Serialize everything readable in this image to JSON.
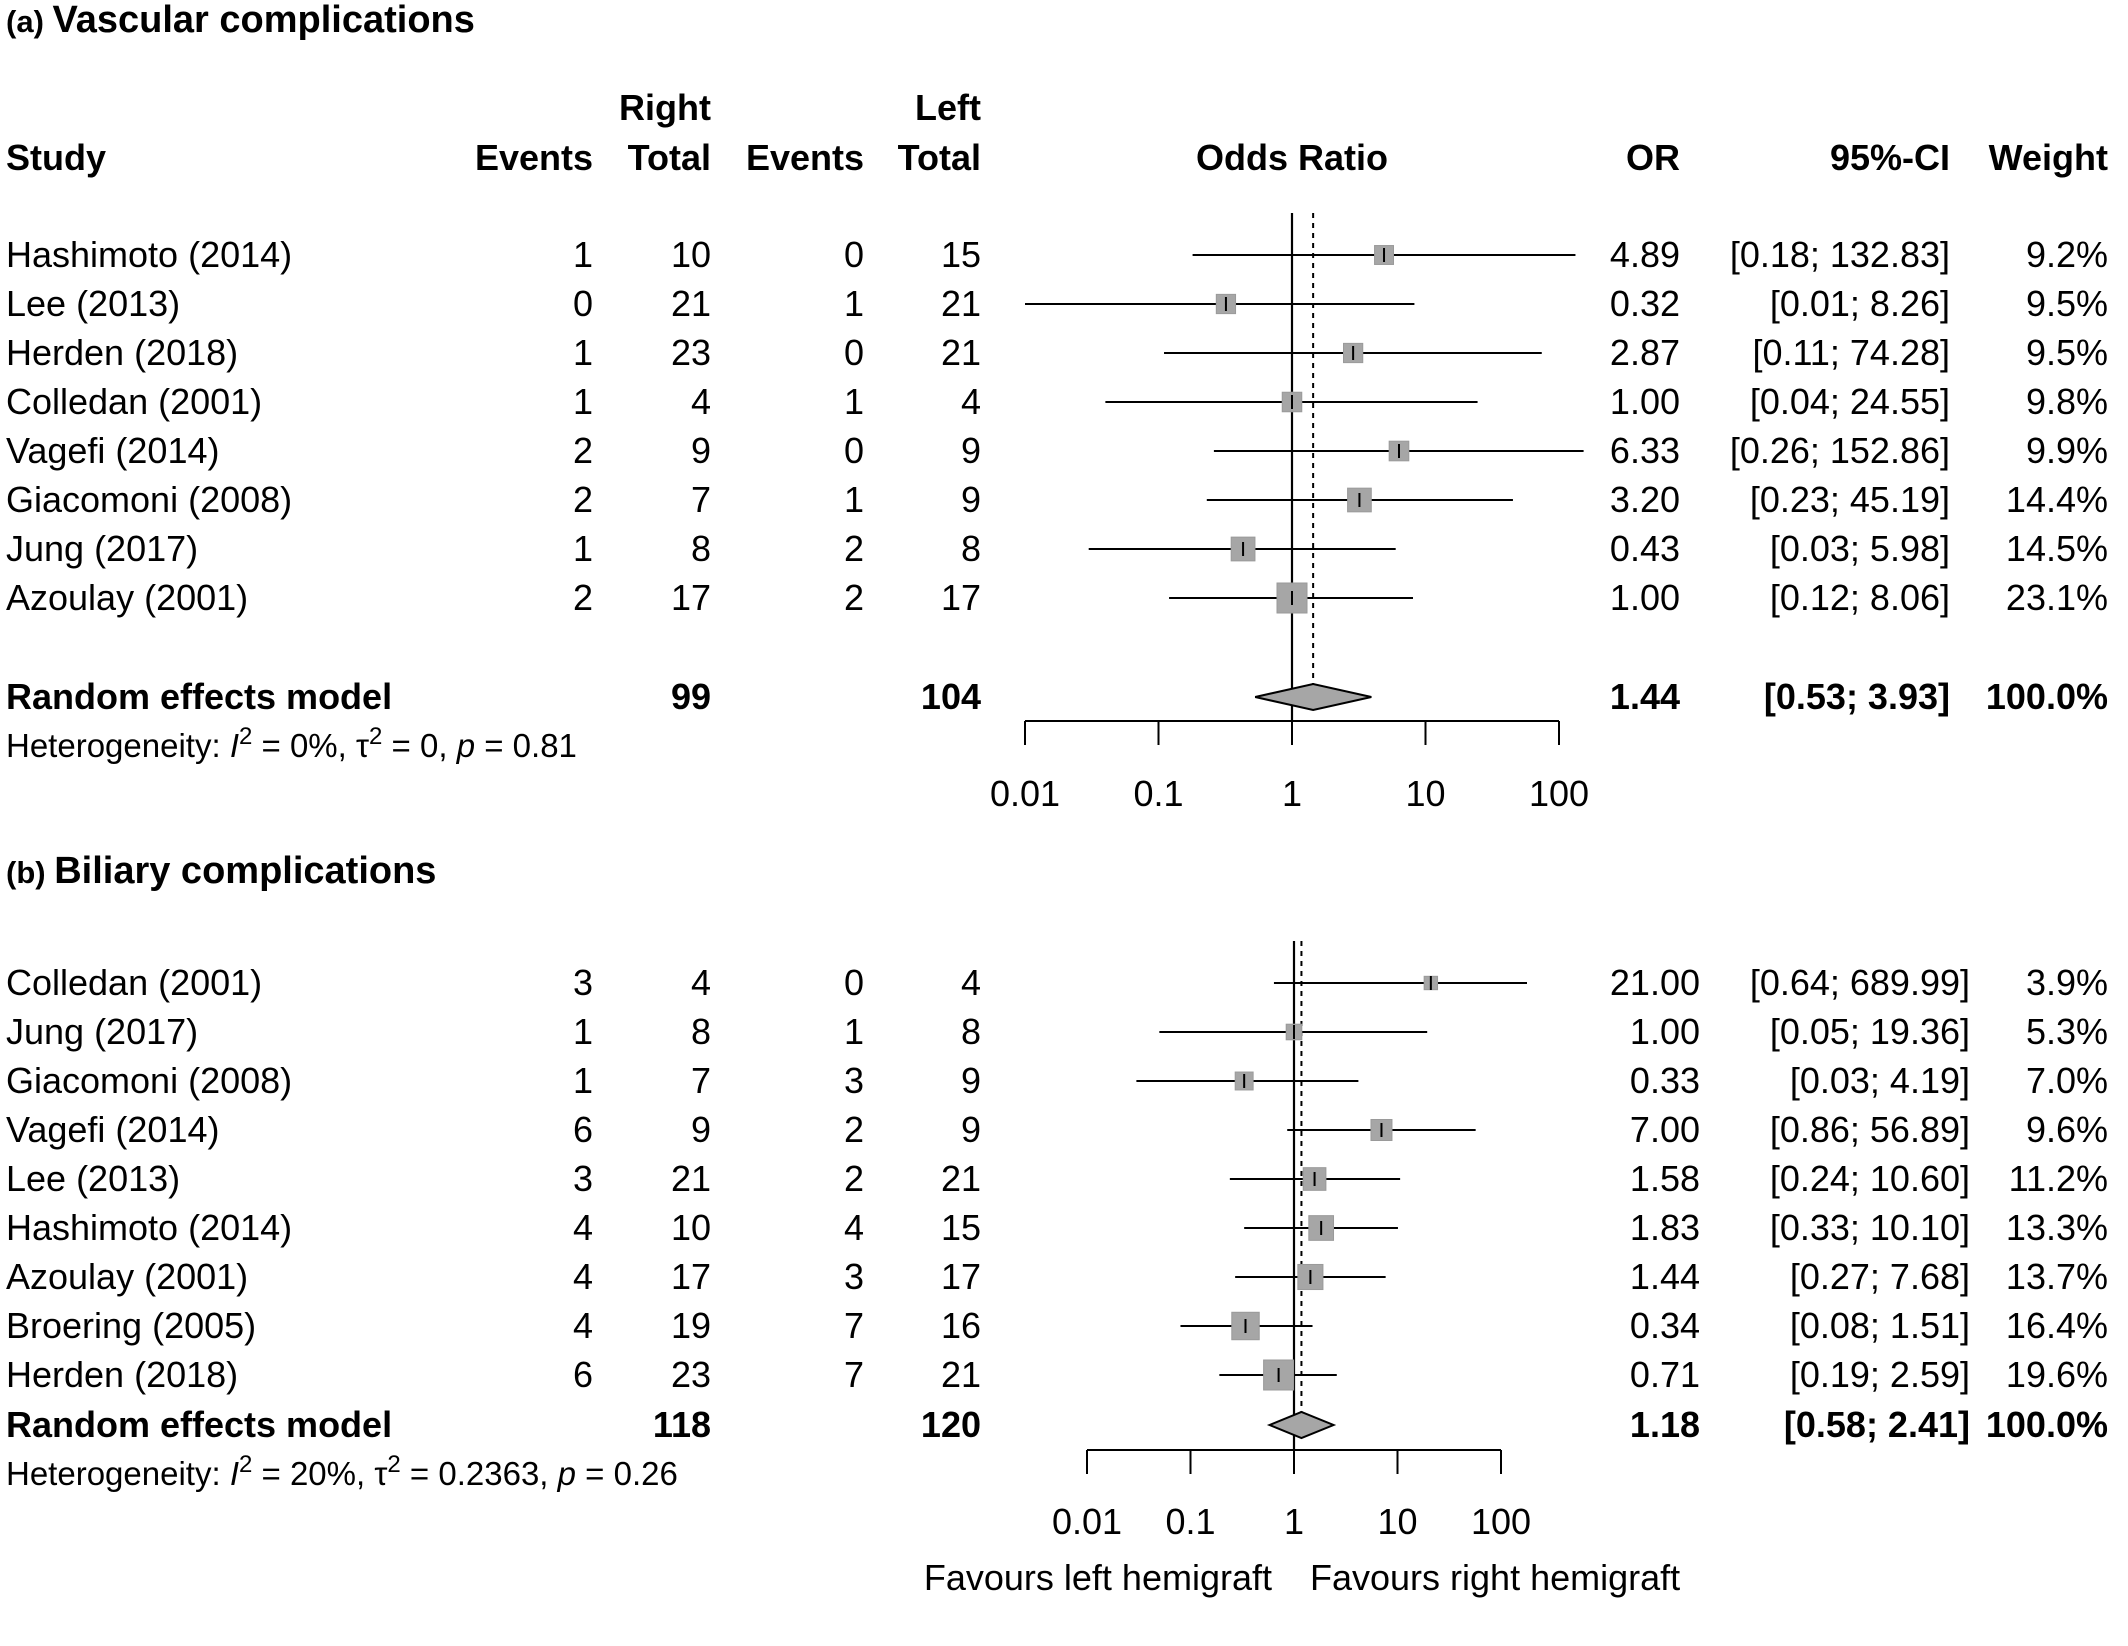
{
  "chart_data": [
    {
      "type": "forest",
      "panel_label": "(a)",
      "title": "Vascular complications",
      "columns": {
        "study": "Study",
        "right_group": "Right",
        "left_group": "Left",
        "events": "Events",
        "total": "Total",
        "plot": "Odds Ratio",
        "or": "OR",
        "ci": "95%-CI",
        "weight": "Weight"
      },
      "studies": [
        {
          "study": "Hashimoto (2014)",
          "right_events": 1,
          "right_total": 10,
          "left_events": 0,
          "left_total": 15,
          "or": 4.89,
          "ci_low": 0.18,
          "ci_high": 132.83,
          "weight": 9.2,
          "or_text": "4.89",
          "ci_text": "[0.18; 132.83]",
          "weight_text": "9.2%"
        },
        {
          "study": "Lee (2013)",
          "right_events": 0,
          "right_total": 21,
          "left_events": 1,
          "left_total": 21,
          "or": 0.32,
          "ci_low": 0.01,
          "ci_high": 8.26,
          "weight": 9.5,
          "or_text": "0.32",
          "ci_text": "[0.01;   8.26]",
          "weight_text": "9.5%"
        },
        {
          "study": "Herden (2018)",
          "right_events": 1,
          "right_total": 23,
          "left_events": 0,
          "left_total": 21,
          "or": 2.87,
          "ci_low": 0.11,
          "ci_high": 74.28,
          "weight": 9.5,
          "or_text": "2.87",
          "ci_text": "[0.11;  74.28]",
          "weight_text": "9.5%"
        },
        {
          "study": "Colledan (2001)",
          "right_events": 1,
          "right_total": 4,
          "left_events": 1,
          "left_total": 4,
          "or": 1.0,
          "ci_low": 0.04,
          "ci_high": 24.55,
          "weight": 9.8,
          "or_text": "1.00",
          "ci_text": "[0.04;  24.55]",
          "weight_text": "9.8%"
        },
        {
          "study": "Vagefi (2014)",
          "right_events": 2,
          "right_total": 9,
          "left_events": 0,
          "left_total": 9,
          "or": 6.33,
          "ci_low": 0.26,
          "ci_high": 152.86,
          "weight": 9.9,
          "or_text": "6.33",
          "ci_text": "[0.26; 152.86]",
          "weight_text": "9.9%"
        },
        {
          "study": "Giacomoni (2008)",
          "right_events": 2,
          "right_total": 7,
          "left_events": 1,
          "left_total": 9,
          "or": 3.2,
          "ci_low": 0.23,
          "ci_high": 45.19,
          "weight": 14.4,
          "or_text": "3.20",
          "ci_text": "[0.23;  45.19]",
          "weight_text": "14.4%"
        },
        {
          "study": "Jung (2017)",
          "right_events": 1,
          "right_total": 8,
          "left_events": 2,
          "left_total": 8,
          "or": 0.43,
          "ci_low": 0.03,
          "ci_high": 5.98,
          "weight": 14.5,
          "or_text": "0.43",
          "ci_text": "[0.03;   5.98]",
          "weight_text": "14.5%"
        },
        {
          "study": "Azoulay (2001)",
          "right_events": 2,
          "right_total": 17,
          "left_events": 2,
          "left_total": 17,
          "or": 1.0,
          "ci_low": 0.12,
          "ci_high": 8.06,
          "weight": 23.1,
          "or_text": "1.00",
          "ci_text": "[0.12;   8.06]",
          "weight_text": "23.1%"
        }
      ],
      "summary": {
        "label": "Random effects model",
        "right_total": 99,
        "left_total": 104,
        "or": 1.44,
        "ci_low": 0.53,
        "ci_high": 3.93,
        "or_text": "1.44",
        "ci_text": "[0.53;   3.93]",
        "weight_text": "100.0%"
      },
      "heterogeneity": {
        "prefix": "Heterogeneity: ",
        "i2_symbol": "I",
        "sup": "2",
        "i2_value": " = 0%, ",
        "tau_symbol": "τ",
        "tau_value": " = 0, ",
        "p_symbol": "p",
        "p_value": " = 0.81"
      },
      "x_axis": {
        "scale": "log",
        "ticks": [
          0.01,
          0.1,
          1,
          10,
          100
        ],
        "tick_labels": [
          "0.01",
          "0.1",
          "1",
          "10",
          "100"
        ],
        "xlim": [
          0.01,
          100
        ]
      },
      "reference_line": 1
    },
    {
      "type": "forest",
      "panel_label": "(b)",
      "title": "Biliary complications",
      "studies": [
        {
          "study": "Colledan (2001)",
          "right_events": 3,
          "right_total": 4,
          "left_events": 0,
          "left_total": 4,
          "or": 21.0,
          "ci_low": 0.64,
          "ci_high": 689.99,
          "weight": 3.9,
          "or_text": "21.00",
          "ci_text": "[0.64; 689.99]",
          "weight_text": "3.9%"
        },
        {
          "study": "Jung  (2017)",
          "right_events": 1,
          "right_total": 8,
          "left_events": 1,
          "left_total": 8,
          "or": 1.0,
          "ci_low": 0.05,
          "ci_high": 19.36,
          "weight": 5.3,
          "or_text": "1.00",
          "ci_text": "[0.05;  19.36]",
          "weight_text": "5.3%"
        },
        {
          "study": "Giacomoni  (2008)",
          "right_events": 1,
          "right_total": 7,
          "left_events": 3,
          "left_total": 9,
          "or": 0.33,
          "ci_low": 0.03,
          "ci_high": 4.19,
          "weight": 7.0,
          "or_text": "0.33",
          "ci_text": "[0.03;   4.19]",
          "weight_text": "7.0%"
        },
        {
          "study": "Vagefi  (2014)",
          "right_events": 6,
          "right_total": 9,
          "left_events": 2,
          "left_total": 9,
          "or": 7.0,
          "ci_low": 0.86,
          "ci_high": 56.89,
          "weight": 9.6,
          "or_text": "7.00",
          "ci_text": "[0.86;  56.89]",
          "weight_text": "9.6%"
        },
        {
          "study": "Lee  (2013)",
          "right_events": 3,
          "right_total": 21,
          "left_events": 2,
          "left_total": 21,
          "or": 1.58,
          "ci_low": 0.24,
          "ci_high": 10.6,
          "weight": 11.2,
          "or_text": "1.58",
          "ci_text": "[0.24;  10.60]",
          "weight_text": "11.2%"
        },
        {
          "study": "Hashimoto  (2014)",
          "right_events": 4,
          "right_total": 10,
          "left_events": 4,
          "left_total": 15,
          "or": 1.83,
          "ci_low": 0.33,
          "ci_high": 10.1,
          "weight": 13.3,
          "or_text": "1.83",
          "ci_text": "[0.33;  10.10]",
          "weight_text": "13.3%"
        },
        {
          "study": "Azoulay  (2001)",
          "right_events": 4,
          "right_total": 17,
          "left_events": 3,
          "left_total": 17,
          "or": 1.44,
          "ci_low": 0.27,
          "ci_high": 7.68,
          "weight": 13.7,
          "or_text": "1.44",
          "ci_text": "[0.27;   7.68]",
          "weight_text": "13.7%"
        },
        {
          "study": "Broering  (2005)",
          "right_events": 4,
          "right_total": 19,
          "left_events": 7,
          "left_total": 16,
          "or": 0.34,
          "ci_low": 0.08,
          "ci_high": 1.51,
          "weight": 16.4,
          "or_text": "0.34",
          "ci_text": "[0.08;   1.51]",
          "weight_text": "16.4%"
        },
        {
          "study": "Herden  (2018)",
          "right_events": 6,
          "right_total": 23,
          "left_events": 7,
          "left_total": 21,
          "or": 0.71,
          "ci_low": 0.19,
          "ci_high": 2.59,
          "weight": 19.6,
          "or_text": "0.71",
          "ci_text": "[0.19;   2.59]",
          "weight_text": "19.6%"
        }
      ],
      "summary": {
        "label": "Random effects model",
        "right_total": 118,
        "left_total": 120,
        "or": 1.18,
        "ci_low": 0.58,
        "ci_high": 2.41,
        "or_text": "1.18",
        "ci_text": "[0.58;   2.41]",
        "weight_text": "100.0%"
      },
      "heterogeneity": {
        "prefix": "Heterogeneity: ",
        "i2_symbol": "I",
        "sup": "2",
        "i2_value": " = 20%, ",
        "tau_symbol": "τ",
        "tau_value": " = 0.2363, ",
        "p_symbol": "p",
        "p_value": " = 0.26"
      },
      "x_axis": {
        "scale": "log",
        "ticks": [
          0.01,
          0.1,
          1,
          10,
          100
        ],
        "tick_labels": [
          "0.01",
          "0.1",
          "1",
          "10",
          "100"
        ],
        "xlim": [
          0.01,
          100
        ]
      },
      "reference_line": 1,
      "favours_left": "Favours left hemigraft",
      "favours_right": "Favours right hemigraft"
    }
  ],
  "colors": {
    "box": "#a6a6a6",
    "box_edge": "#9a9a9a",
    "diamond": "#a6a6a6",
    "line": "#000000"
  }
}
